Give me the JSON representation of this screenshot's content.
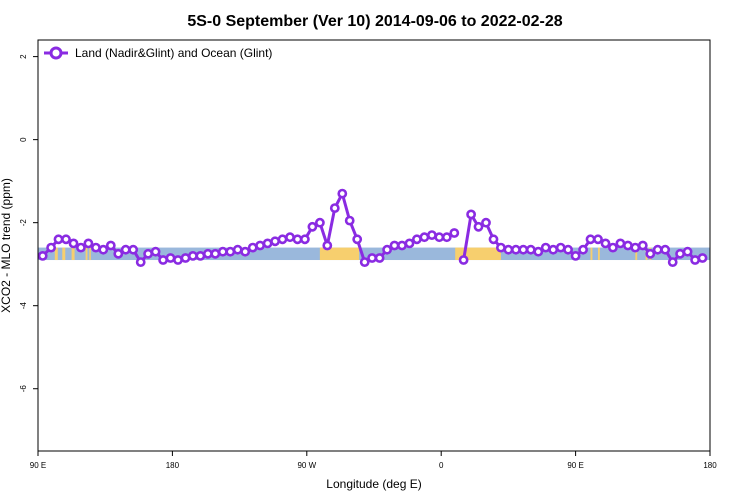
{
  "chart_data": {
    "type": "line",
    "title": "5S-0 September (Ver 10)   2014-09-06 to 2022-02-28",
    "xlabel": "Longitude (deg E)",
    "ylabel": "XCO2 - MLO trend (ppm)",
    "xlim": [
      90,
      450
    ],
    "ylim": [
      -7.5,
      2.4
    ],
    "x_ticks": [
      {
        "value": 90,
        "label": "90 E"
      },
      {
        "value": 162,
        "label": "180"
      },
      {
        "value": 234,
        "label": "90 W"
      },
      {
        "value": 306,
        "label": "0"
      },
      {
        "value": 378,
        "label": "90 E"
      },
      {
        "value": 450,
        "label": "180"
      }
    ],
    "y_ticks": [
      {
        "value": 2,
        "label": "2"
      },
      {
        "value": 0,
        "label": "0"
      },
      {
        "value": -2,
        "label": "-2"
      },
      {
        "value": -4,
        "label": "-4"
      },
      {
        "value": -6,
        "label": "-6"
      }
    ],
    "grid": false,
    "legend_position": "top-left",
    "series": [
      {
        "name": "Land (Nadir&Glint) and Ocean (Glint)",
        "color": "#8a2be2",
        "segments": [
          [
            [
              92.5,
              -2.8
            ],
            [
              97,
              -2.6
            ],
            [
              101,
              -2.4
            ],
            [
              105,
              -2.4
            ],
            [
              109,
              -2.5
            ],
            [
              113,
              -2.6
            ],
            [
              117,
              -2.5
            ],
            [
              121,
              -2.6
            ],
            [
              125,
              -2.65
            ],
            [
              129,
              -2.55
            ],
            [
              133,
              -2.75
            ],
            [
              137,
              -2.65
            ],
            [
              141,
              -2.65
            ],
            [
              145,
              -2.95
            ],
            [
              149,
              -2.75
            ],
            [
              153,
              -2.7
            ],
            [
              157,
              -2.9
            ],
            [
              161,
              -2.85
            ],
            [
              165,
              -2.9
            ],
            [
              169,
              -2.85
            ],
            [
              173,
              -2.8
            ],
            [
              177,
              -2.8
            ],
            [
              181,
              -2.75
            ],
            [
              185,
              -2.75
            ],
            [
              189,
              -2.7
            ],
            [
              193,
              -2.7
            ],
            [
              197,
              -2.65
            ],
            [
              201,
              -2.7
            ],
            [
              205,
              -2.6
            ],
            [
              209,
              -2.55
            ],
            [
              213,
              -2.5
            ],
            [
              217,
              -2.45
            ],
            [
              221,
              -2.4
            ],
            [
              225,
              -2.35
            ],
            [
              229,
              -2.4
            ],
            [
              233,
              -2.4
            ],
            [
              237,
              -2.1
            ],
            [
              241,
              -2.0
            ],
            [
              245,
              -2.55
            ],
            [
              249,
              -1.65
            ],
            [
              253,
              -1.3
            ],
            [
              257,
              -1.95
            ],
            [
              261,
              -2.4
            ],
            [
              265,
              -2.95
            ],
            [
              269,
              -2.85
            ],
            [
              273,
              -2.85
            ],
            [
              277,
              -2.65
            ],
            [
              281,
              -2.55
            ],
            [
              285,
              -2.55
            ],
            [
              289,
              -2.5
            ],
            [
              293,
              -2.4
            ],
            [
              297,
              -2.35
            ],
            [
              301,
              -2.3
            ],
            [
              305,
              -2.35
            ],
            [
              309,
              -2.35
            ],
            [
              313,
              -2.25
            ]
          ],
          [
            [
              318,
              -2.9
            ],
            [
              322,
              -1.8
            ],
            [
              326,
              -2.1
            ],
            [
              330,
              -2.0
            ],
            [
              334,
              -2.4
            ],
            [
              338,
              -2.6
            ],
            [
              342,
              -2.65
            ],
            [
              346,
              -2.65
            ],
            [
              350,
              -2.65
            ],
            [
              354,
              -2.65
            ],
            [
              358,
              -2.7
            ],
            [
              362,
              -2.6
            ],
            [
              366,
              -2.65
            ],
            [
              370,
              -2.6
            ],
            [
              374,
              -2.65
            ],
            [
              378,
              -2.8
            ],
            [
              382,
              -2.65
            ],
            [
              386,
              -2.4
            ],
            [
              390,
              -2.4
            ],
            [
              394,
              -2.5
            ],
            [
              398,
              -2.6
            ],
            [
              402,
              -2.5
            ],
            [
              406,
              -2.55
            ],
            [
              410,
              -2.6
            ],
            [
              414,
              -2.55
            ],
            [
              418,
              -2.75
            ],
            [
              422,
              -2.65
            ],
            [
              426,
              -2.65
            ],
            [
              430,
              -2.95
            ],
            [
              434,
              -2.75
            ],
            [
              438,
              -2.7
            ],
            [
              442,
              -2.9
            ],
            [
              446,
              -2.85
            ]
          ]
        ]
      }
    ],
    "background_band": {
      "y_range": [
        -2.6,
        -2.9
      ],
      "ocean_color": "#9ab8dc",
      "land_color": "#f7cf6e",
      "land_spans": [
        [
          99,
          100.6
        ],
        [
          103,
          104.6
        ],
        [
          108,
          109.6
        ],
        [
          115.5,
          116.5
        ],
        [
          117.5,
          118.3
        ],
        [
          241,
          262
        ],
        [
          313.5,
          338
        ],
        [
          386,
          387
        ],
        [
          390,
          391
        ],
        [
          410,
          411
        ],
        [
          415.5,
          416.5
        ],
        [
          417.5,
          418.5
        ]
      ]
    }
  }
}
